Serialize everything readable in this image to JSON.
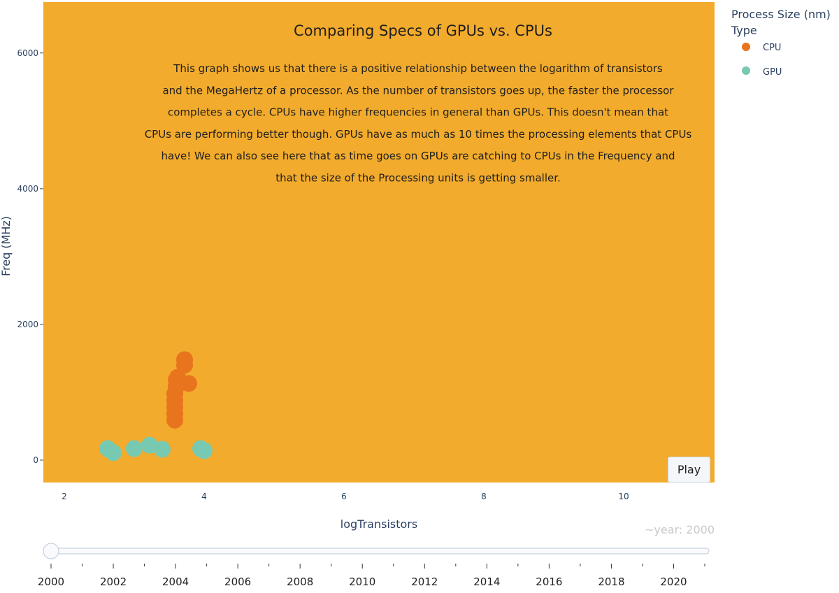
{
  "chart_data": {
    "type": "scatter",
    "title": "Comparing Specs of GPUs vs. CPUs",
    "annotation": [
      "This graph shows us that there is a positive relationship between the logarithm of transistors",
      "and the MegaHertz of a processor. As the number of transistors goes up, the faster the processor",
      "completes a cycle.  CPUs have higher frequencies in general than GPUs.  This doesn't mean that",
      "CPUs are performing better though.  GPUs have as much as 10 times the processing elements that CPUs",
      "have!  We can also see here that as time goes on GPUs are catching to CPUs in the Frequency and",
      "that the size of the Processing units is getting smaller."
    ],
    "xlabel": "logTransistors",
    "ylabel": "Freq (MHz)",
    "xlim": [
      1.7,
      11.3
    ],
    "ylim": [
      -330,
      6750
    ],
    "xticks": [
      2,
      4,
      6,
      8,
      10
    ],
    "yticks": [
      0,
      2000,
      4000,
      6000
    ],
    "grid": false,
    "plot_bgcolor": "#f2ab2c",
    "legend": {
      "title_lines": [
        "Process Size (nm)",
        "Type"
      ],
      "placement": "top-right outside"
    },
    "series": [
      {
        "name": "CPU",
        "color": "#e8741e",
        "points": [
          {
            "x": 3.58,
            "y": 590
          },
          {
            "x": 3.58,
            "y": 680
          },
          {
            "x": 3.58,
            "y": 780
          },
          {
            "x": 3.58,
            "y": 880
          },
          {
            "x": 3.58,
            "y": 980
          },
          {
            "x": 3.6,
            "y": 1080
          },
          {
            "x": 3.6,
            "y": 1180
          },
          {
            "x": 3.62,
            "y": 1220
          },
          {
            "x": 3.72,
            "y": 1400
          },
          {
            "x": 3.72,
            "y": 1480
          },
          {
            "x": 3.78,
            "y": 1130
          }
        ]
      },
      {
        "name": "GPU",
        "color": "#77c9b2",
        "points": [
          {
            "x": 2.62,
            "y": 170
          },
          {
            "x": 2.7,
            "y": 110
          },
          {
            "x": 3.0,
            "y": 170
          },
          {
            "x": 3.22,
            "y": 220
          },
          {
            "x": 3.4,
            "y": 160
          },
          {
            "x": 3.95,
            "y": 170
          },
          {
            "x": 4.0,
            "y": 140
          }
        ]
      }
    ]
  },
  "slider": {
    "current_label": "~year: 2000",
    "years": [
      "2000",
      "2002",
      "2004",
      "2006",
      "2008",
      "2010",
      "2012",
      "2014",
      "2016",
      "2018",
      "2020"
    ],
    "current_value": 2000,
    "range": [
      2000,
      2021
    ]
  },
  "controls": {
    "play_label": "Play"
  }
}
